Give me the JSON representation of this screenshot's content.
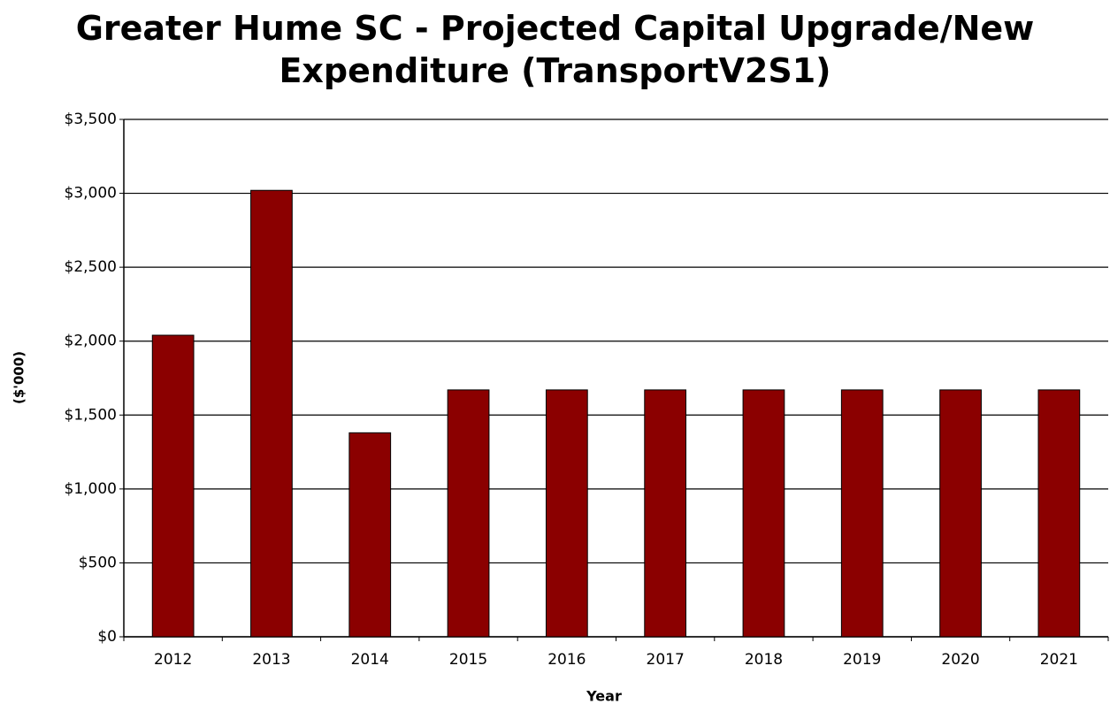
{
  "chart_data": {
    "type": "bar",
    "title": "Greater Hume SC - Projected Capital Upgrade/New Expenditure (TransportV2S1)",
    "x_label": "Year",
    "y_label": "($'000)",
    "categories": [
      "2012",
      "2013",
      "2014",
      "2015",
      "2016",
      "2017",
      "2018",
      "2019",
      "2020",
      "2021"
    ],
    "values": [
      2040,
      3020,
      1380,
      1670,
      1670,
      1670,
      1670,
      1670,
      1670,
      1670
    ],
    "color": "#8b0000",
    "ylim": [
      0,
      3500
    ],
    "yticks": [
      {
        "value": 0,
        "label": "$0"
      },
      {
        "value": 500,
        "label": "$500"
      },
      {
        "value": 1000,
        "label": "$1,000"
      },
      {
        "value": 1500,
        "label": "$1,500"
      },
      {
        "value": 2000,
        "label": "$2,000"
      },
      {
        "value": 2500,
        "label": "$2,500"
      },
      {
        "value": 3000,
        "label": "$3,000"
      },
      {
        "value": 3500,
        "label": "$3,500"
      }
    ],
    "grid": true
  }
}
